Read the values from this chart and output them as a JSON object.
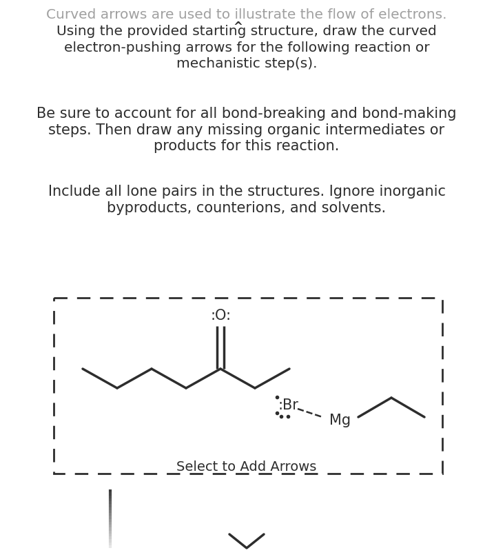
{
  "bg_color": "#ffffff",
  "title_line1": "Curved arrows are used to illustrate the flow of electrons.",
  "title_line2": "Using the provided starting structure, draw the curved",
  "title_line3": "electron-pushing arrows for the following reaction or",
  "title_line4": "mechanistic step(s).",
  "para2_line1": "Be sure to account for all bond-breaking and bond-making",
  "para2_line2": "steps. Then draw any missing organic intermediates or",
  "para2_line3": "products for this reaction.",
  "para3_line1": "Include all lone pairs in the structures. Ignore inorganic",
  "para3_line2": "byproducts, counterions, and solvents.",
  "title_color": "#a0a0a0",
  "body_color": "#2d2d2d",
  "box_color": "#2d2d2d",
  "chem_color": "#2d2d2d",
  "select_label": "Select to Add Arrows",
  "font_size_title": 14.5,
  "font_size_body": 15.0,
  "font_size_chem": 14,
  "font_size_select": 14
}
